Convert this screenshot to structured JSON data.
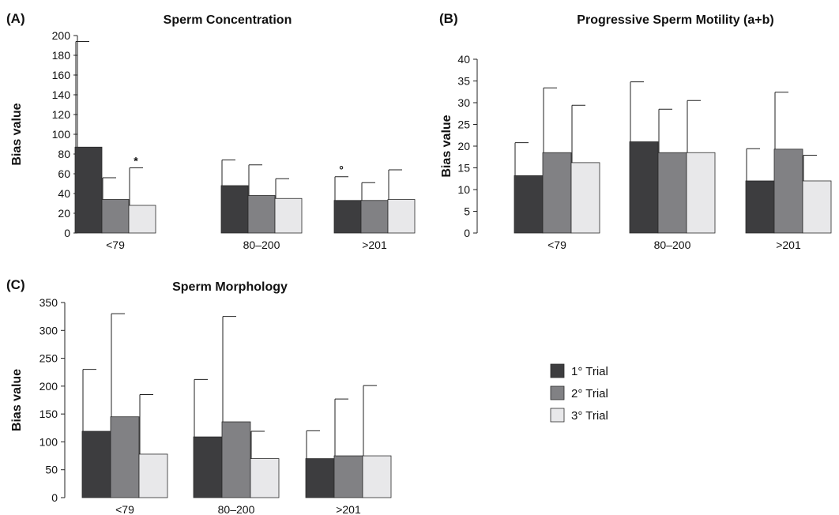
{
  "legend": {
    "entries": [
      {
        "name": "1° Trial",
        "color": "#3d3d3f"
      },
      {
        "name": "2° Trial",
        "color": "#818184"
      },
      {
        "name": "3° Trial",
        "color": "#e8e8ea"
      }
    ]
  },
  "chart_data": [
    {
      "type": "bar",
      "panel": "(A)",
      "title": "Sperm Concentration",
      "ylabel": "Bias value",
      "xlabel": "",
      "categories": [
        "<79",
        "80–200",
        ">201"
      ],
      "ylim": [
        0,
        200
      ],
      "yticks": [
        0,
        20,
        40,
        60,
        80,
        100,
        120,
        140,
        160,
        180,
        200
      ],
      "grid": false,
      "series": [
        {
          "name": "1° Trial",
          "values": [
            87,
            48,
            33
          ],
          "error": [
            107,
            26,
            24
          ]
        },
        {
          "name": "2° Trial",
          "values": [
            34,
            38,
            33
          ],
          "error": [
            22,
            31,
            18
          ]
        },
        {
          "name": "3° Trial",
          "values": [
            28,
            35,
            34
          ],
          "error": [
            38,
            20,
            30
          ]
        }
      ],
      "annotations": [
        {
          "text": "*",
          "category": "<79",
          "series": "3° Trial"
        },
        {
          "text": "°",
          "category": ">201",
          "series": "1° Trial"
        }
      ]
    },
    {
      "type": "bar",
      "panel": "(B)",
      "title": "Progressive Sperm Motility (a+b)",
      "ylabel": "Bias value",
      "xlabel": "",
      "categories": [
        "<79",
        "80–200",
        ">201"
      ],
      "ylim": [
        0,
        40
      ],
      "yticks": [
        0,
        5,
        10,
        15,
        20,
        25,
        30,
        35,
        40
      ],
      "grid": false,
      "series": [
        {
          "name": "1° Trial",
          "values": [
            13.2,
            21,
            12
          ],
          "error": [
            7.6,
            13.8,
            7.4
          ]
        },
        {
          "name": "2° Trial",
          "values": [
            18.5,
            18.5,
            19.3
          ],
          "error": [
            14.9,
            10.0,
            13.1
          ]
        },
        {
          "name": "3° Trial",
          "values": [
            16.2,
            18.5,
            12
          ],
          "error": [
            13.2,
            12.0,
            5.9
          ]
        }
      ],
      "annotations": []
    },
    {
      "type": "bar",
      "panel": "(C)",
      "title": "Sperm Morphology",
      "ylabel": "Bias value",
      "xlabel": "",
      "categories": [
        "<79",
        "80–200",
        ">201"
      ],
      "ylim": [
        0,
        350
      ],
      "yticks": [
        0,
        50,
        100,
        150,
        200,
        250,
        300,
        350
      ],
      "grid": false,
      "series": [
        {
          "name": "1° Trial",
          "values": [
            119,
            109,
            70
          ],
          "error": [
            111,
            103,
            50
          ]
        },
        {
          "name": "2° Trial",
          "values": [
            145,
            136,
            75
          ],
          "error": [
            185,
            189,
            102
          ]
        },
        {
          "name": "3° Trial",
          "values": [
            78,
            70,
            75
          ],
          "error": [
            107,
            49,
            126
          ]
        }
      ],
      "annotations": []
    }
  ]
}
